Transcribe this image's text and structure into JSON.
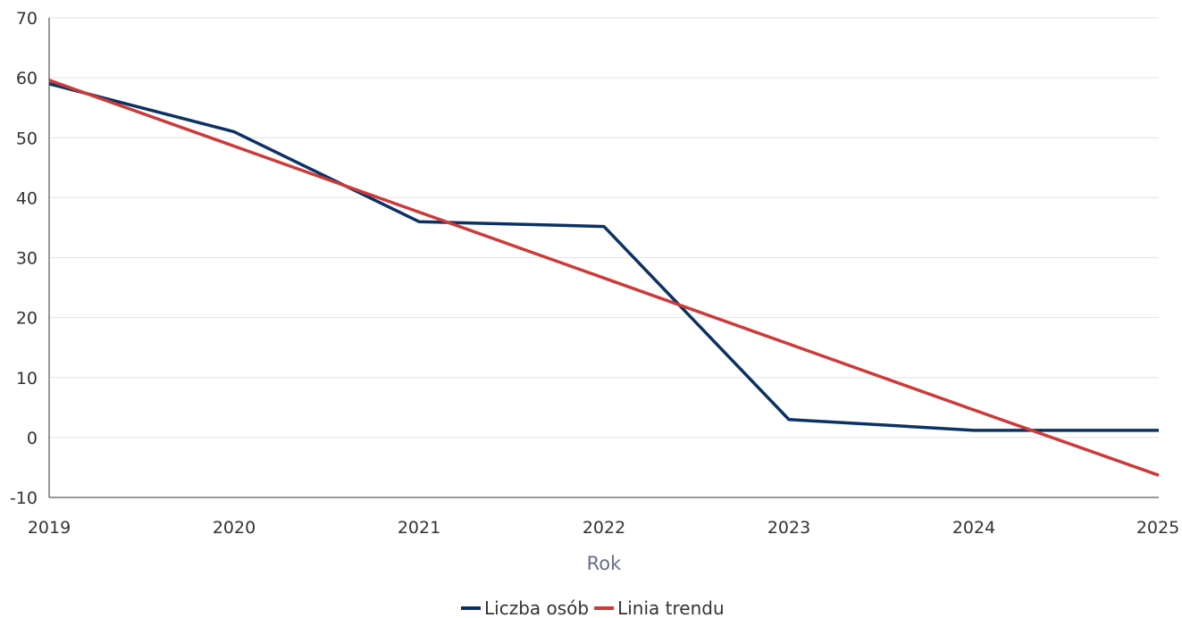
{
  "chart_data": {
    "type": "line",
    "x": [
      2019,
      2020,
      2021,
      2022,
      2023,
      2024,
      2025
    ],
    "xlabel": "Rok",
    "ylabel": "",
    "xlim": [
      2019,
      2025
    ],
    "ylim": [
      -10,
      70
    ],
    "yticks": [
      -10,
      0,
      10,
      20,
      30,
      40,
      50,
      60,
      70
    ],
    "grid": true,
    "legend": "bottom",
    "series": [
      {
        "name": "Liczba osób",
        "color": "#0b3263",
        "values": [
          59,
          51,
          36,
          35.2,
          3,
          1.2,
          1.2
        ]
      },
      {
        "name": "Linia trendu",
        "color": "#cd3a3a",
        "values": [
          59.6,
          48.6,
          37.6,
          26.6,
          15.6,
          4.6,
          -6.3
        ]
      }
    ]
  }
}
